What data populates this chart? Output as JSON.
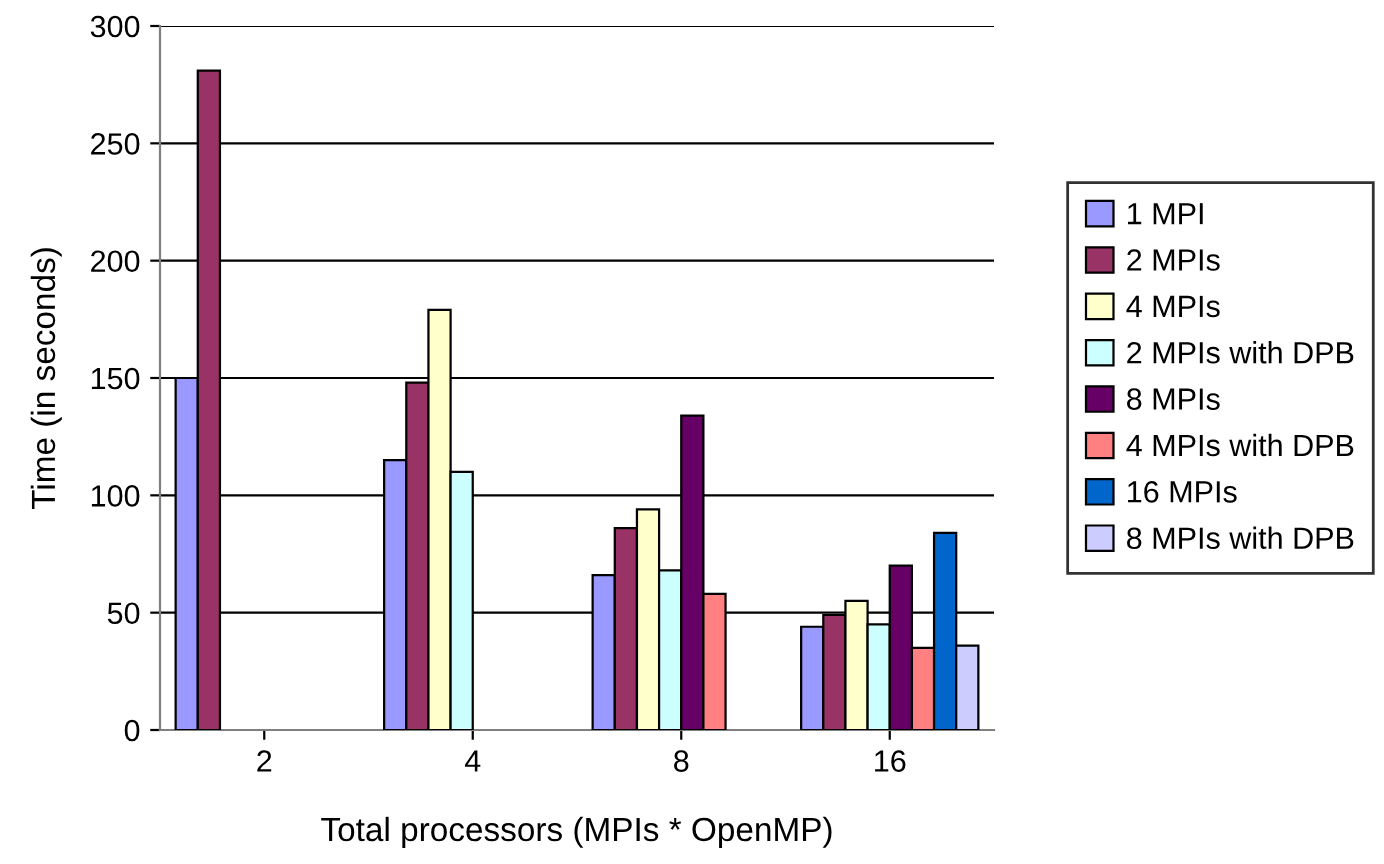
{
  "chart_data": {
    "type": "bar",
    "xlabel": "Total processors (MPIs * OpenMP)",
    "ylabel": "Time (in seconds)",
    "categories": [
      "2",
      "4",
      "8",
      "16"
    ],
    "series": [
      {
        "name": "1 MPI",
        "color": "#9999ff",
        "values": [
          150,
          115,
          66,
          44
        ]
      },
      {
        "name": "2 MPIs",
        "color": "#993366",
        "values": [
          281,
          148,
          86,
          49
        ]
      },
      {
        "name": "4 MPIs",
        "color": "#ffffcc",
        "values": [
          null,
          179,
          94,
          55
        ]
      },
      {
        "name": "2 MPIs with DPB",
        "color": "#ccffff",
        "values": [
          null,
          110,
          68,
          45
        ]
      },
      {
        "name": "8 MPIs",
        "color": "#660066",
        "values": [
          null,
          null,
          134,
          70
        ]
      },
      {
        "name": "4 MPIs with DPB",
        "color": "#ff8080",
        "values": [
          null,
          null,
          58,
          35
        ]
      },
      {
        "name": "16 MPIs",
        "color": "#0066cc",
        "values": [
          null,
          null,
          null,
          84
        ]
      },
      {
        "name": "8 MPIs with DPB",
        "color": "#ccccff",
        "values": [
          null,
          null,
          null,
          36
        ]
      }
    ],
    "ylim": [
      0,
      300
    ],
    "yticks": [
      0,
      50,
      100,
      150,
      200,
      250,
      300
    ],
    "grid": "y",
    "legend": "right"
  }
}
